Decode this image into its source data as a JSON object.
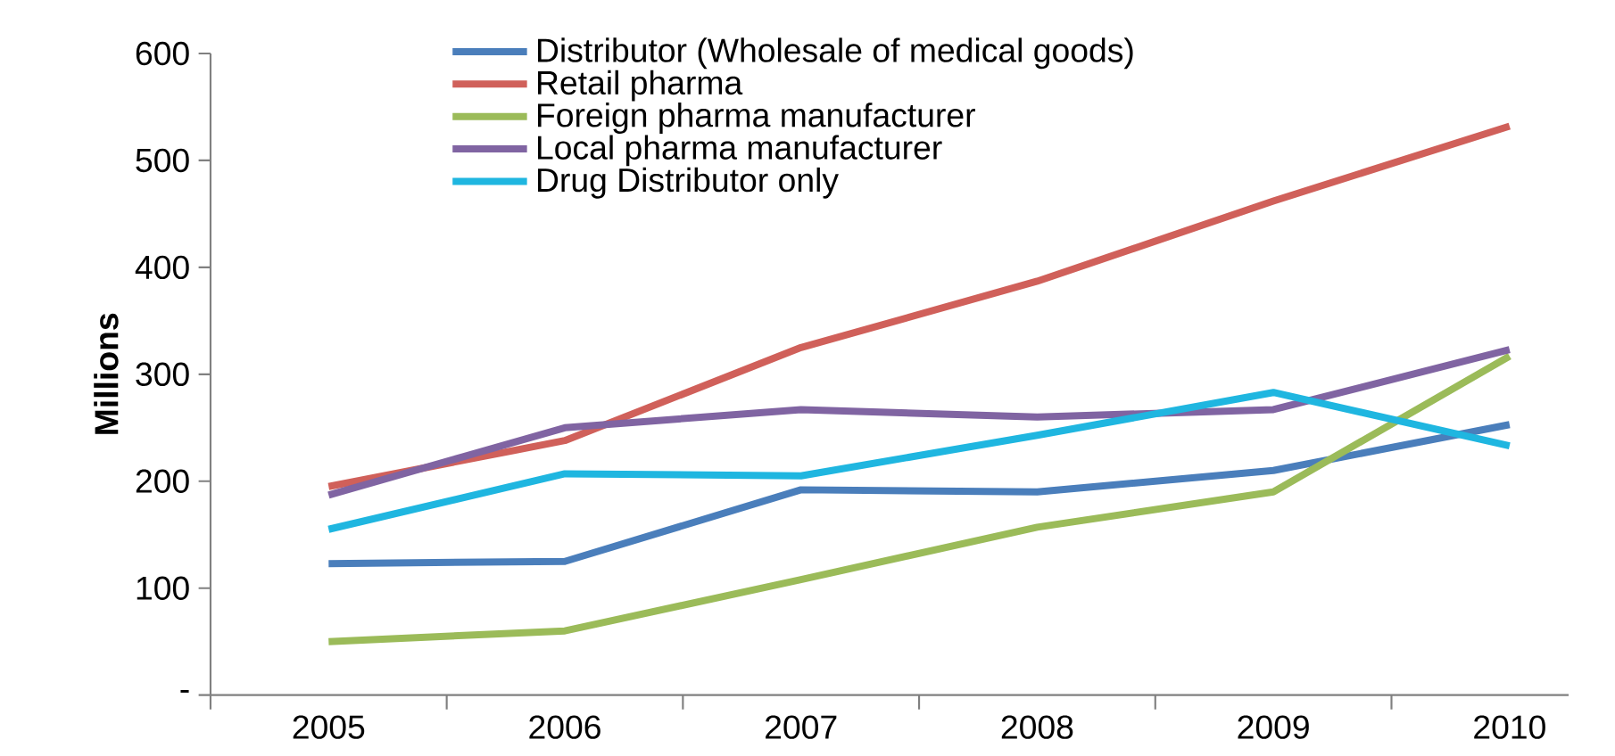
{
  "chart_data": {
    "type": "line",
    "ylabel": "Millions",
    "categories": [
      "2005",
      "2006",
      "2007",
      "2008",
      "2009",
      "2010"
    ],
    "ylim": [
      0,
      600
    ],
    "yticks": [
      {
        "value": 0,
        "label": "-"
      },
      100,
      200,
      300,
      400,
      500,
      600
    ],
    "legend": "top",
    "grid": false,
    "marker": "none",
    "line_style": "solid",
    "series": [
      {
        "name": "Distributor (Wholesale of medical goods)",
        "color": "#4a7ebb",
        "values": [
          123,
          125,
          192,
          190,
          210,
          253
        ]
      },
      {
        "name": "Retail pharma",
        "color": "#d0605a",
        "values": [
          195,
          238,
          325,
          387,
          462,
          532
        ]
      },
      {
        "name": "Foreign pharma manufacturer",
        "color": "#9bbb59",
        "values": [
          50,
          60,
          108,
          157,
          190,
          317
        ]
      },
      {
        "name": "Local pharma manufacturer",
        "color": "#8064a2",
        "values": [
          187,
          250,
          267,
          260,
          267,
          323
        ]
      },
      {
        "name": "Drug Distributor only",
        "color": "#1fb6e0",
        "values": [
          155,
          207,
          205,
          243,
          283,
          233
        ]
      }
    ]
  }
}
